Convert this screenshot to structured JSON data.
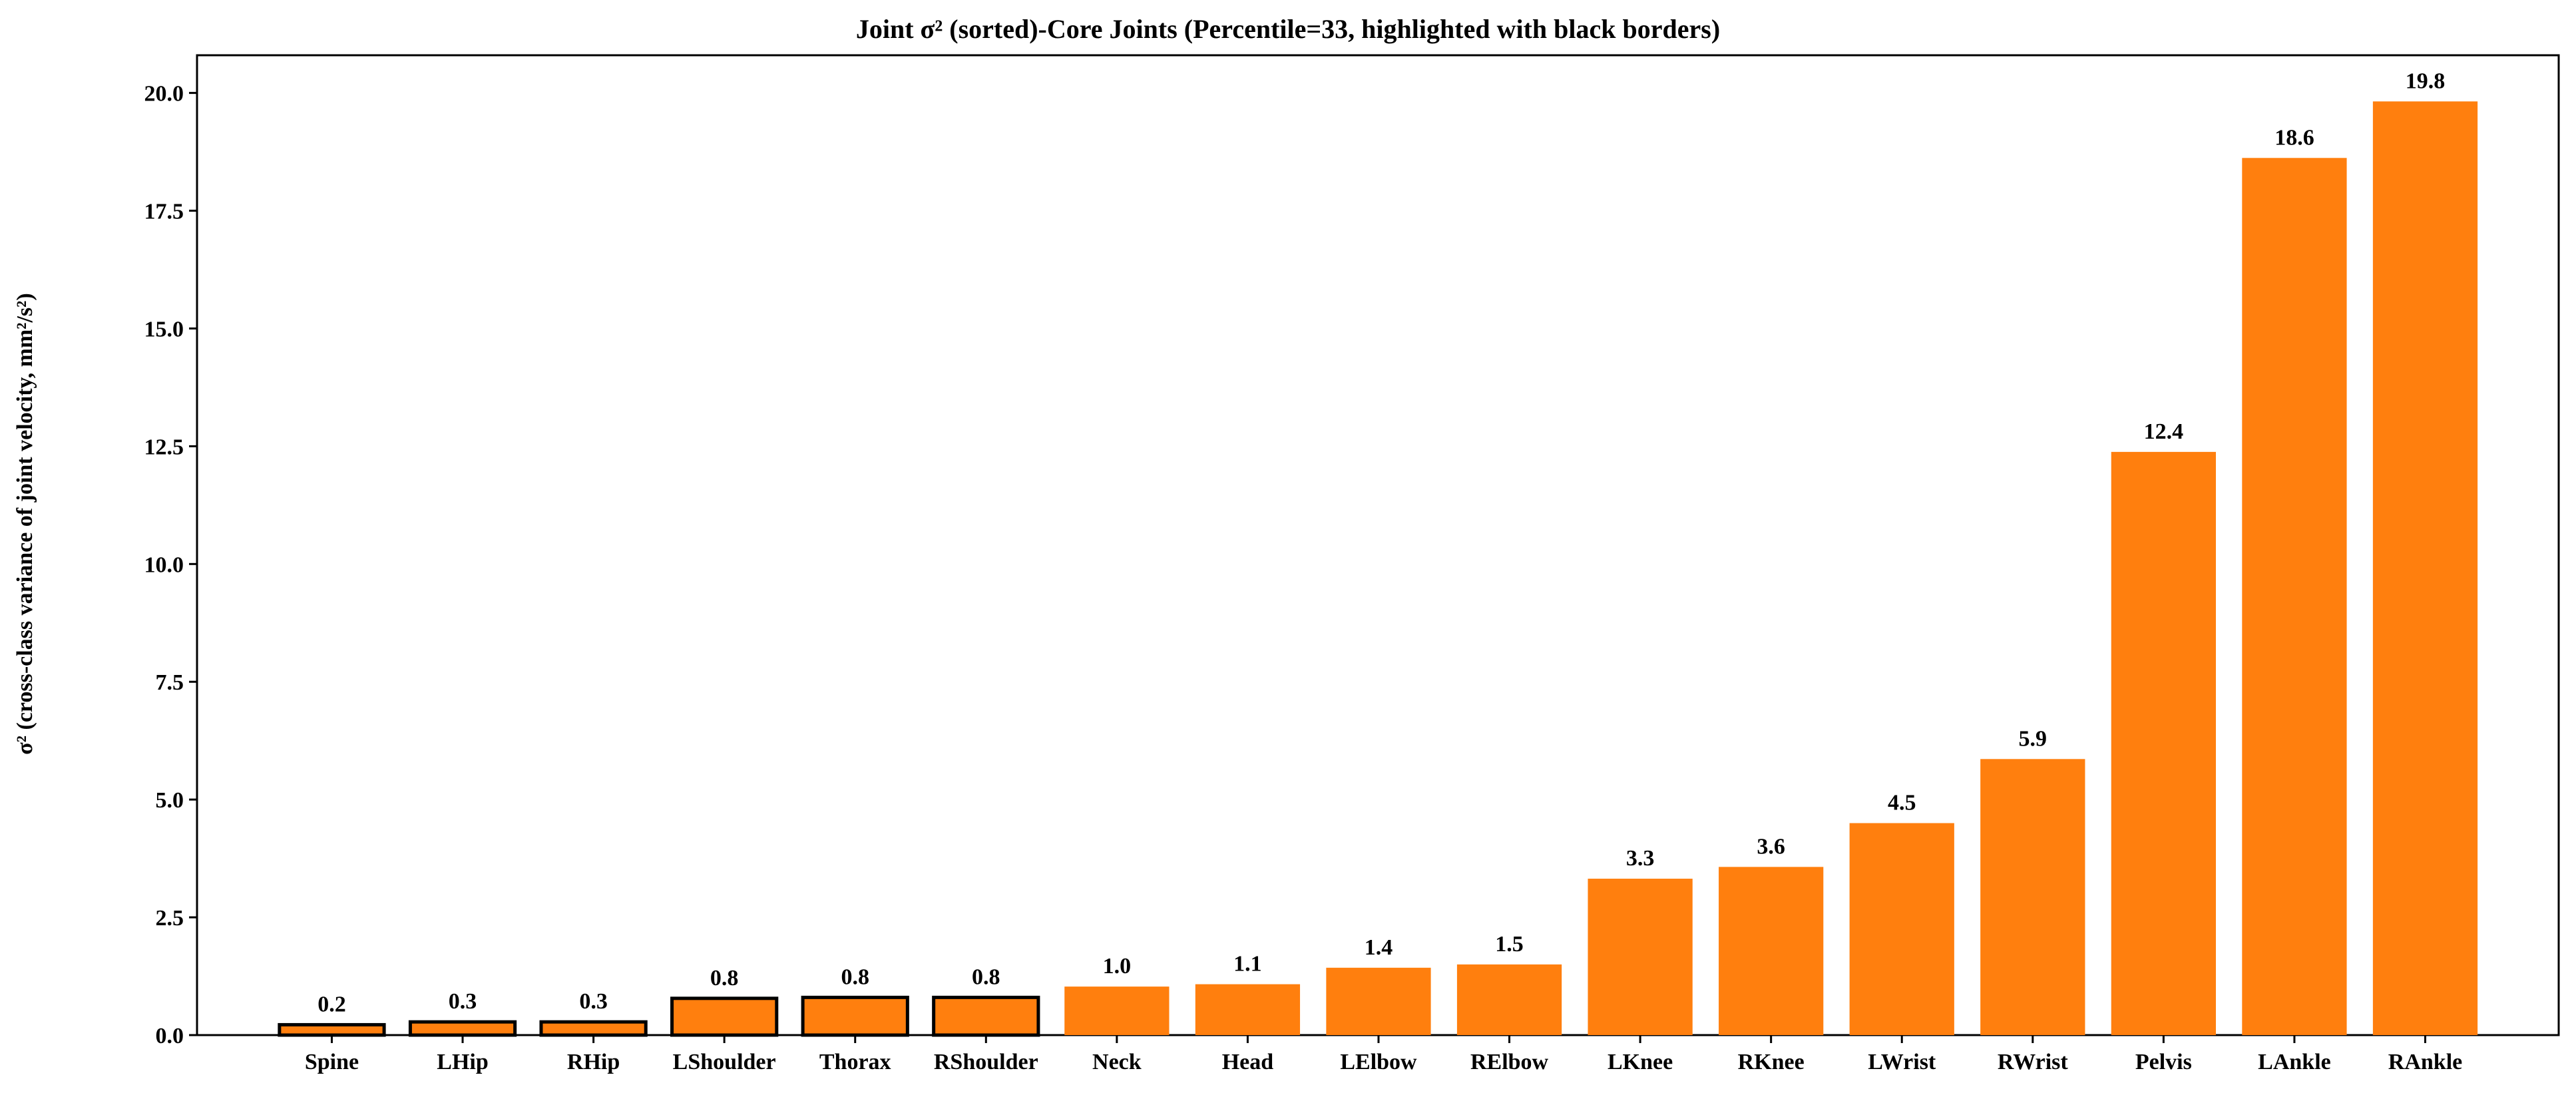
{
  "chart_data": {
    "type": "bar",
    "title": "Joint σ² (sorted)-Core Joints (Percentile=33, highlighted with black borders)",
    "xlabel": "",
    "ylabel": "σ² (cross-class variance of joint velocity, mm²/s²)",
    "ylim": [
      0,
      20.8
    ],
    "yticks": [
      "0.0",
      "2.5",
      "5.0",
      "7.5",
      "10.0",
      "12.5",
      "15.0",
      "17.5",
      "20.0"
    ],
    "categories": [
      "Spine",
      "LHip",
      "RHip",
      "LShoulder",
      "Thorax",
      "RShoulder",
      "Neck",
      "Head",
      "LElbow",
      "RElbow",
      "LKnee",
      "RKnee",
      "LWrist",
      "RWrist",
      "Pelvis",
      "LAnkle",
      "RAnkle"
    ],
    "values": [
      0.22,
      0.28,
      0.28,
      0.78,
      0.8,
      0.8,
      1.03,
      1.08,
      1.43,
      1.5,
      3.32,
      3.57,
      4.5,
      5.86,
      12.38,
      18.62,
      19.82
    ],
    "labels": [
      "0.2",
      "0.3",
      "0.3",
      "0.8",
      "0.8",
      "0.8",
      "1.0",
      "1.1",
      "1.4",
      "1.5",
      "3.3",
      "3.6",
      "4.5",
      "5.9",
      "12.4",
      "18.6",
      "19.8"
    ],
    "highlighted": [
      true,
      true,
      true,
      true,
      true,
      true,
      false,
      false,
      false,
      false,
      false,
      false,
      false,
      false,
      false,
      false,
      false
    ],
    "bar_color": "#ff7f0e",
    "highlight_border_color": "#000000",
    "grid": false,
    "legend": "none"
  }
}
